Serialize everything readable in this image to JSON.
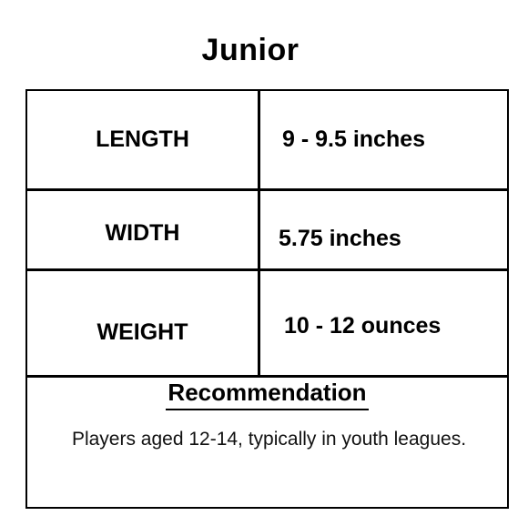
{
  "title": "Junior",
  "specs": [
    {
      "label": "LENGTH",
      "value": "9 - 9.5 inches"
    },
    {
      "label": "WIDTH",
      "value": "5.75 inches"
    },
    {
      "label": "WEIGHT",
      "value": "10 - 12 ounces"
    }
  ],
  "recommendation": {
    "heading": "Recommendation",
    "text": "Players aged 12-14, typically in youth leagues."
  }
}
